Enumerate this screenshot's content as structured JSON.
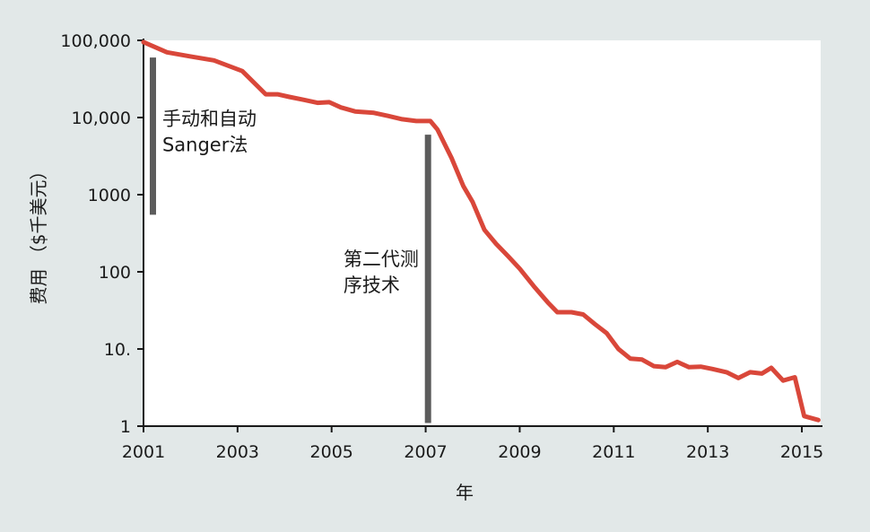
{
  "chart_data": {
    "type": "line",
    "title": "",
    "xlabel": "年",
    "ylabel": "费用 （$千美元）",
    "yscale": "log",
    "xlim": [
      2001,
      2015.4
    ],
    "ylim": [
      1,
      100000
    ],
    "grid": false,
    "x_tick_labels": [
      "2001",
      "2003",
      "2005",
      "2007",
      "2009",
      "2011",
      "2013",
      "2015"
    ],
    "x_ticks": [
      2001,
      2003,
      2005,
      2007,
      2009,
      2011,
      2013,
      2015
    ],
    "y_tick_labels": [
      "1",
      "10.",
      "100",
      "1000",
      "10,000",
      "100,000"
    ],
    "y_ticks": [
      1,
      10,
      100,
      1000,
      10000,
      100000
    ],
    "line_color": "#d9473a",
    "bar_color": "#5c5c5c",
    "series": [
      {
        "values": [
          [
            2001.0,
            95000
          ],
          [
            2001.5,
            70000
          ],
          [
            2002.0,
            62000
          ],
          [
            2002.5,
            55000
          ],
          [
            2003.1,
            40000
          ],
          [
            2003.6,
            20000
          ],
          [
            2003.85,
            20000
          ],
          [
            2004.1,
            18500
          ],
          [
            2004.4,
            17000
          ],
          [
            2004.7,
            15500
          ],
          [
            2004.95,
            15800
          ],
          [
            2005.2,
            13500
          ],
          [
            2005.5,
            12000
          ],
          [
            2005.9,
            11500
          ],
          [
            2006.2,
            10500
          ],
          [
            2006.5,
            9500
          ],
          [
            2006.8,
            9000
          ],
          [
            2007.1,
            9000
          ],
          [
            2007.25,
            7000
          ],
          [
            2007.55,
            3000
          ],
          [
            2007.8,
            1300
          ],
          [
            2008.0,
            800
          ],
          [
            2008.25,
            350
          ],
          [
            2008.5,
            230
          ],
          [
            2008.75,
            160
          ],
          [
            2009.0,
            110
          ],
          [
            2009.3,
            65
          ],
          [
            2009.6,
            40
          ],
          [
            2009.8,
            30
          ],
          [
            2010.1,
            30
          ],
          [
            2010.35,
            28
          ],
          [
            2010.6,
            21
          ],
          [
            2010.85,
            16
          ],
          [
            2011.1,
            10
          ],
          [
            2011.35,
            7.5
          ],
          [
            2011.6,
            7.3
          ],
          [
            2011.85,
            6.0
          ],
          [
            2012.1,
            5.8
          ],
          [
            2012.35,
            6.8
          ],
          [
            2012.6,
            5.8
          ],
          [
            2012.85,
            5.9
          ],
          [
            2013.1,
            5.5
          ],
          [
            2013.4,
            5.0
          ],
          [
            2013.65,
            4.2
          ],
          [
            2013.9,
            5.0
          ],
          [
            2014.15,
            4.8
          ],
          [
            2014.35,
            5.7
          ],
          [
            2014.6,
            3.9
          ],
          [
            2014.85,
            4.3
          ],
          [
            2015.05,
            1.35
          ],
          [
            2015.35,
            1.2
          ]
        ]
      }
    ],
    "annotations": [
      {
        "text": [
          "手动和自动",
          "Sanger法"
        ],
        "x": 2001.4,
        "y": 8000,
        "bar_x": 2001.2,
        "bar_y": [
          550,
          60000
        ]
      },
      {
        "text": [
          "第二代测",
          "序技术"
        ],
        "x": 2005.25,
        "y": 120,
        "bar_x": 2007.05,
        "bar_y": [
          1.1,
          6000
        ]
      }
    ]
  }
}
